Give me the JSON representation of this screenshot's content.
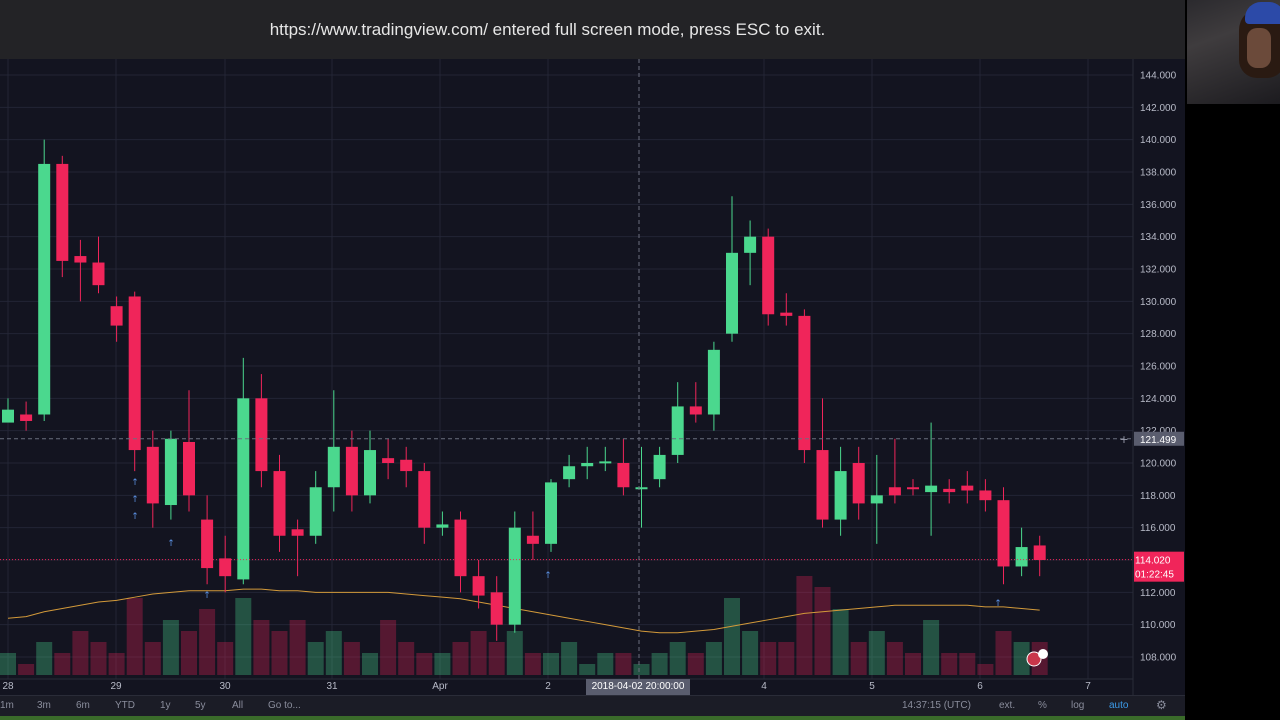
{
  "banner": {
    "text": "https://www.tradingview.com/ entered full screen mode, press ESC to exit."
  },
  "colors": {
    "background": "#131420",
    "up": "#4bd88e",
    "down": "#f0255a",
    "grid": "#232535",
    "accent": "#3c9ae8",
    "ma": "#d39a3a",
    "price_tag": "#f0255a",
    "crosshair_tag": "#5a5d6e"
  },
  "price_axis": {
    "ticks": [
      "144.000",
      "142.000",
      "140.000",
      "138.000",
      "136.000",
      "134.000",
      "132.000",
      "130.000",
      "128.000",
      "126.000",
      "124.000",
      "122.000",
      "120.000",
      "118.000",
      "116.000",
      "114.000",
      "112.000",
      "110.000",
      "108.000"
    ],
    "crosshair_label": "121.499",
    "last_price": "114.020",
    "countdown": "01:22:45"
  },
  "time_axis": {
    "labels": [
      "28",
      "29",
      "30",
      "31",
      "Apr",
      "2",
      "4",
      "5",
      "6",
      "7"
    ],
    "crosshair_label": "2018-04-02 20:00:00"
  },
  "bottom_bar": {
    "ranges": [
      "1m",
      "3m",
      "6m",
      "YTD",
      "1y",
      "5y",
      "All"
    ],
    "goto": "Go to...",
    "clock": "14:37:15 (UTC)",
    "toggles": [
      "ext.",
      "%",
      "log",
      "auto"
    ],
    "settings_icon": "gear-icon"
  },
  "chart_data": {
    "type": "candlestick",
    "ylim": [
      107,
      145
    ],
    "x": [
      0,
      1,
      2,
      3,
      4,
      5,
      6,
      7,
      8,
      9,
      10,
      11,
      12,
      13,
      14,
      15,
      16,
      17,
      18,
      19,
      20,
      21,
      22,
      23,
      24,
      25,
      26,
      27,
      28,
      29,
      30,
      31,
      32,
      33,
      34,
      35,
      36,
      37,
      38,
      39,
      40,
      41,
      42,
      43,
      44,
      45,
      46,
      47,
      48,
      49,
      50,
      51,
      52,
      53,
      54,
      55,
      56,
      57
    ],
    "candles": [
      [
        0,
        122.5,
        123.3,
        124.0,
        122.8
      ],
      [
        1,
        123.0,
        122.6,
        123.8,
        122.0
      ],
      [
        2,
        123.0,
        138.5,
        140.0,
        122.6
      ],
      [
        3,
        138.5,
        132.5,
        139.0,
        131.5
      ],
      [
        4,
        132.8,
        132.4,
        133.8,
        130.0
      ],
      [
        5,
        132.4,
        131.0,
        134.0,
        130.5
      ],
      [
        6,
        129.7,
        128.5,
        130.3,
        127.5
      ],
      [
        7,
        130.3,
        120.8,
        130.6,
        119.5
      ],
      [
        8,
        121.0,
        117.5,
        122.0,
        116.0
      ],
      [
        9,
        117.4,
        121.5,
        122.0,
        116.5
      ],
      [
        10,
        121.3,
        118.0,
        124.5,
        117.0
      ],
      [
        11,
        116.5,
        113.5,
        118.0,
        112.5
      ],
      [
        12,
        114.1,
        113.0,
        115.5,
        112.0
      ],
      [
        13,
        112.8,
        124.0,
        126.5,
        112.5
      ],
      [
        14,
        124.0,
        119.5,
        125.5,
        118.5
      ],
      [
        15,
        119.5,
        115.5,
        120.5,
        114.5
      ],
      [
        16,
        115.9,
        115.5,
        116.5,
        113.0
      ],
      [
        17,
        115.5,
        118.5,
        119.5,
        115.0
      ],
      [
        18,
        118.5,
        121.0,
        124.5,
        117.0
      ],
      [
        19,
        121.0,
        118.0,
        122.0,
        117.0
      ],
      [
        20,
        118.0,
        120.8,
        122.0,
        117.5
      ],
      [
        21,
        120.3,
        120.0,
        121.5,
        119.0
      ],
      [
        22,
        120.2,
        119.5,
        121.0,
        118.5
      ],
      [
        23,
        119.5,
        116.0,
        120.0,
        115.0
      ],
      [
        24,
        116.0,
        116.2,
        117.0,
        115.5
      ],
      [
        25,
        116.5,
        113.0,
        117.0,
        112.0
      ],
      [
        26,
        113.0,
        111.8,
        114.0,
        111.0
      ],
      [
        27,
        112.0,
        110.0,
        113.0,
        109.0
      ],
      [
        28,
        110.0,
        116.0,
        117.0,
        109.5
      ],
      [
        29,
        115.5,
        115.0,
        117.0,
        114.0
      ],
      [
        30,
        115.0,
        118.8,
        119.0,
        114.5
      ],
      [
        31,
        119.0,
        119.8,
        120.5,
        118.5
      ],
      [
        32,
        119.8,
        120.0,
        121.0,
        119.0
      ],
      [
        33,
        120.0,
        120.1,
        121.0,
        119.5
      ],
      [
        34,
        120.0,
        118.5,
        121.5,
        118.0
      ],
      [
        35,
        118.5,
        118.5,
        121.0,
        116.0
      ],
      [
        36,
        119.0,
        120.5,
        121.0,
        118.5
      ],
      [
        37,
        120.5,
        123.5,
        125.0,
        120.0
      ],
      [
        38,
        123.5,
        123.0,
        125.0,
        122.5
      ],
      [
        39,
        123.0,
        127.0,
        127.5,
        122.0
      ],
      [
        40,
        128.0,
        133.0,
        136.5,
        127.5
      ],
      [
        41,
        133.0,
        134.0,
        135.0,
        131.0
      ],
      [
        42,
        134.0,
        129.2,
        134.5,
        128.5
      ],
      [
        43,
        129.3,
        129.1,
        130.5,
        128.5
      ],
      [
        44,
        129.1,
        120.8,
        129.5,
        120.0
      ],
      [
        45,
        120.8,
        116.5,
        124.0,
        116.0
      ],
      [
        46,
        116.5,
        119.5,
        121.0,
        115.5
      ],
      [
        47,
        120.0,
        117.5,
        121.0,
        116.5
      ],
      [
        48,
        117.5,
        118.0,
        120.5,
        115.0
      ],
      [
        49,
        118.5,
        118.0,
        121.5,
        117.5
      ],
      [
        50,
        118.5,
        118.4,
        119.0,
        118.0
      ],
      [
        51,
        118.2,
        118.6,
        122.5,
        115.5
      ],
      [
        52,
        118.4,
        118.2,
        119.0,
        117.5
      ],
      [
        53,
        118.6,
        118.3,
        119.5,
        117.5
      ],
      [
        54,
        118.3,
        117.7,
        119.0,
        117.0
      ],
      [
        55,
        117.7,
        113.6,
        118.5,
        112.5
      ],
      [
        56,
        113.6,
        114.8,
        116.0,
        113.0
      ],
      [
        57,
        114.9,
        114.0,
        115.5,
        113.0
      ]
    ],
    "volume": [
      2,
      1,
      3,
      2,
      4,
      3,
      2,
      7,
      3,
      5,
      4,
      6,
      3,
      7,
      5,
      4,
      5,
      3,
      4,
      3,
      2,
      5,
      3,
      2,
      2,
      3,
      4,
      3,
      4,
      2,
      2,
      3,
      1,
      2,
      2,
      1,
      2,
      3,
      2,
      3,
      7,
      4,
      3,
      3,
      9,
      8,
      6,
      3,
      4,
      3,
      2,
      5,
      2,
      2,
      1,
      4,
      3,
      3
    ],
    "ma": [
      110.4,
      110.5,
      110.8,
      111.0,
      111.2,
      111.4,
      111.5,
      111.7,
      111.9,
      112.0,
      112.1,
      112.1,
      112.1,
      112.2,
      112.2,
      112.1,
      112.1,
      112.0,
      112.0,
      112.0,
      112.0,
      112.0,
      111.9,
      111.8,
      111.7,
      111.6,
      111.4,
      111.2,
      111.0,
      110.8,
      110.6,
      110.4,
      110.2,
      110.0,
      109.8,
      109.6,
      109.5,
      109.5,
      109.6,
      109.7,
      109.9,
      110.1,
      110.3,
      110.5,
      110.7,
      110.8,
      110.9,
      111.0,
      111.1,
      111.2,
      111.2,
      111.2,
      111.2,
      111.2,
      111.1,
      111.1,
      111.0,
      110.9
    ]
  }
}
